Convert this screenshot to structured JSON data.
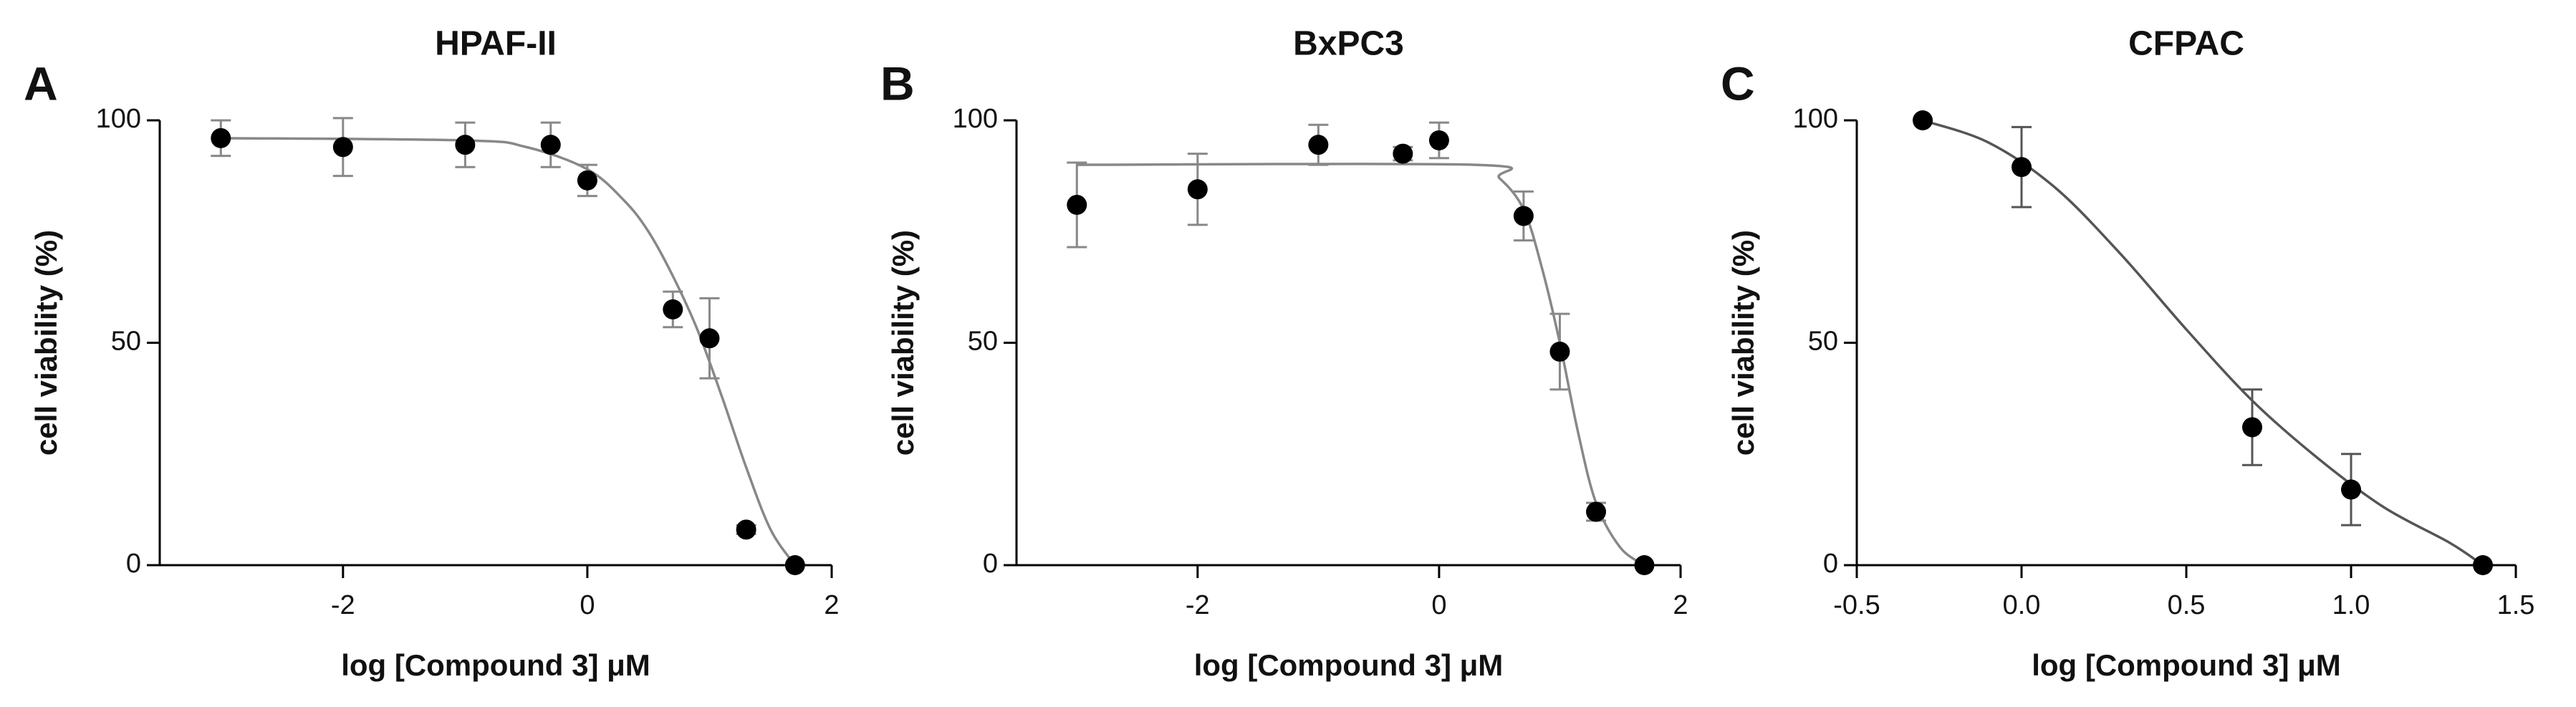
{
  "chart_data": [
    {
      "type": "scatter",
      "panel": "A",
      "title": "HPAF-II",
      "xlabel": "log [Compound 3] μM",
      "ylabel": "cell viability (%)",
      "x": [
        -3,
        -2,
        -1,
        -0.3,
        0,
        0.7,
        1,
        1.3,
        1.7
      ],
      "values": [
        96,
        94,
        94.5,
        94.5,
        86.5,
        57.5,
        51,
        8,
        0
      ],
      "errors": [
        4,
        6.5,
        5,
        5,
        3.5,
        4,
        9,
        1,
        0
      ],
      "curve": {
        "x": [
          -3,
          -1,
          -0.5,
          0,
          0.3,
          0.5,
          0.7,
          0.9,
          1.1,
          1.3,
          1.5,
          1.7
        ],
        "values": [
          96,
          95.5,
          94,
          89,
          82,
          75,
          65,
          53,
          38,
          22,
          8,
          0
        ]
      },
      "color": "#000000",
      "curve_color": "#888888",
      "xlim": [
        -3.5,
        2
      ],
      "xticks": [
        -2,
        0,
        2
      ],
      "ylim": [
        0,
        100
      ],
      "yticks": [
        0,
        50,
        100
      ]
    },
    {
      "type": "scatter",
      "panel": "B",
      "title": "BxPC3",
      "xlabel": "log [Compound 3] μM",
      "ylabel": "cell viability (%)",
      "x": [
        -3,
        -2,
        -1,
        -0.3,
        0,
        0.7,
        1,
        1.3,
        1.7
      ],
      "values": [
        81,
        84.5,
        94.5,
        92.5,
        95.5,
        78.5,
        48,
        12,
        0
      ],
      "errors": [
        9.5,
        8,
        4.5,
        1.5,
        4,
        5.5,
        8.5,
        2,
        0
      ],
      "curve": {
        "x": [
          -3,
          0.3,
          0.5,
          0.7,
          0.85,
          1,
          1.15,
          1.3,
          1.5,
          1.7
        ],
        "values": [
          90,
          90,
          87,
          80,
          67,
          50,
          30,
          14,
          4,
          0
        ]
      },
      "color": "#000000",
      "curve_color": "#888888",
      "xlim": [
        -3.5,
        2
      ],
      "xticks": [
        -2,
        0,
        2
      ],
      "ylim": [
        0,
        100
      ],
      "yticks": [
        0,
        50,
        100
      ]
    },
    {
      "type": "scatter",
      "panel": "C",
      "title": "CFPAC",
      "xlabel": "log [Compound 3] μM",
      "ylabel": "cell viability (%)",
      "x": [
        -0.3,
        0,
        0.7,
        1,
        1.4
      ],
      "values": [
        100,
        89.5,
        31,
        17,
        0
      ],
      "errors": [
        0,
        9,
        8.5,
        8,
        0
      ],
      "curve": {
        "x": [
          -0.3,
          -0.1,
          0.1,
          0.3,
          0.5,
          0.7,
          0.9,
          1.1,
          1.3,
          1.4
        ],
        "values": [
          100,
          95,
          85,
          70,
          53,
          37,
          24,
          13,
          5,
          0
        ]
      },
      "color": "#000000",
      "curve_color": "#555555",
      "xlim": [
        -0.5,
        1.5
      ],
      "xticks": [
        -0.5,
        {
          "value": 0,
          "label": "0.0"
        },
        0.5,
        {
          "value": 1,
          "label": "1.0"
        },
        1.5
      ],
      "ylim": [
        0,
        100
      ],
      "yticks": [
        0,
        50,
        100
      ]
    }
  ]
}
